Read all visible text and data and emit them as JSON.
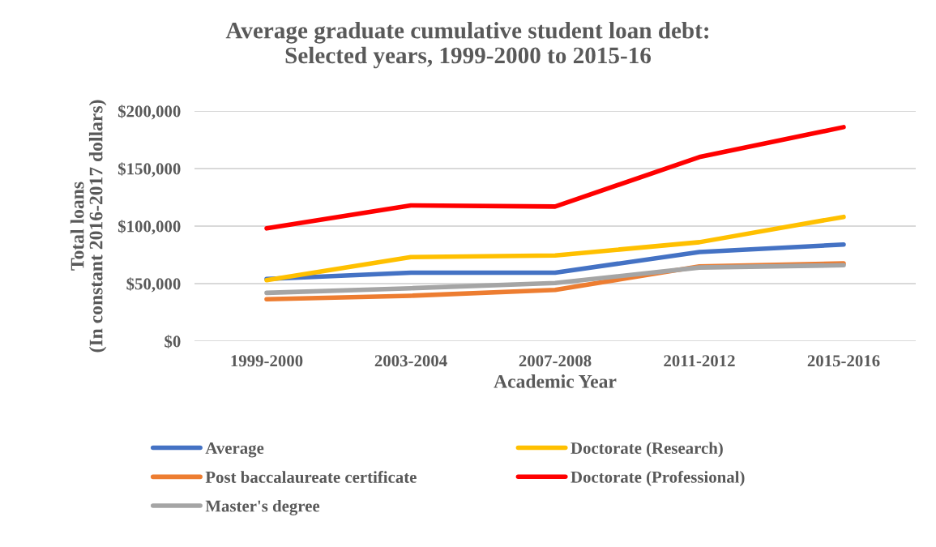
{
  "chart_data": {
    "type": "line",
    "title": "Average graduate cumulative student loan debt:\nSelected years, 1999-2000 to 2015-16",
    "xlabel": "Academic Year",
    "ylabel": "Total loans\n(In constant 2016-2017 dollars)",
    "categories": [
      "1999-2000",
      "2003-2004",
      "2007-2008",
      "2011-2012",
      "2015-2016"
    ],
    "series": [
      {
        "name": "Average",
        "color": "#4472c4",
        "values": [
          54000,
          59500,
          59500,
          77500,
          84000
        ]
      },
      {
        "name": "Post baccalaureate certificate",
        "color": "#ed7d31",
        "values": [
          36500,
          39500,
          44500,
          65000,
          67500
        ]
      },
      {
        "name": "Master's degree",
        "color": "#a5a5a5",
        "values": [
          42000,
          46000,
          50500,
          64000,
          66000
        ]
      },
      {
        "name": "Doctorate (Research)",
        "color": "#ffc000",
        "values": [
          53000,
          73000,
          74500,
          86000,
          108000
        ]
      },
      {
        "name": "Doctorate (Professional)",
        "color": "#ff0000",
        "values": [
          98000,
          118000,
          117000,
          160000,
          186000
        ]
      }
    ],
    "ylim": [
      0,
      200000
    ],
    "yticks": [
      {
        "value": 0,
        "label": "$0"
      },
      {
        "value": 50000,
        "label": "$50,000"
      },
      {
        "value": 100000,
        "label": "$100,000"
      },
      {
        "value": 150000,
        "label": "$150,000"
      },
      {
        "value": 200000,
        "label": "$200,000"
      }
    ],
    "grid": "y",
    "legend": "bottom",
    "marker": "none",
    "line_style": "solid"
  }
}
